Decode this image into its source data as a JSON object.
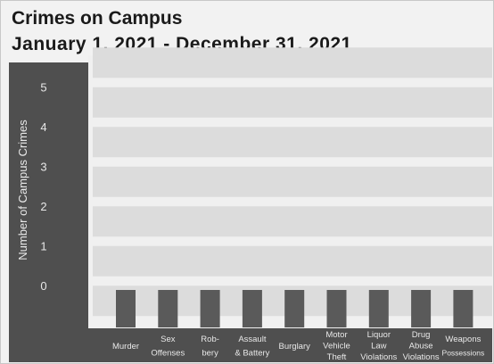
{
  "title_line1": "Crimes on Campus",
  "title_line2": "January 1, 2021 - December 31, 2021",
  "colors": {
    "background": "#f2f2f2",
    "axis_panel": "#4f4f4f",
    "band_light": "#dcdcdc",
    "band_gap": "#f0f0f0",
    "bar": "#5a5a5a",
    "axis_text": "#e8e8e8"
  },
  "chart_data": {
    "type": "bar",
    "ylabel": "Number of Campus Crimes",
    "xlabel": "",
    "ylim": [
      0,
      5
    ],
    "y_ticks": [
      "0",
      "1",
      "2",
      "3",
      "4",
      "5"
    ],
    "categories": [
      [
        "Murder"
      ],
      [
        "Sex",
        "Offenses"
      ],
      [
        "Rob-",
        "bery"
      ],
      [
        "Assault",
        "& Battery"
      ],
      [
        "Burglary"
      ],
      [
        "Motor",
        "Vehicle",
        "Theft"
      ],
      [
        "Liquor",
        "Law",
        "Violations"
      ],
      [
        "Drug",
        "Abuse",
        "Violations"
      ],
      [
        "Weapons",
        "Possessions"
      ]
    ],
    "values": [
      0,
      0,
      0,
      0,
      0,
      0,
      0,
      0,
      0
    ],
    "grid": true
  }
}
